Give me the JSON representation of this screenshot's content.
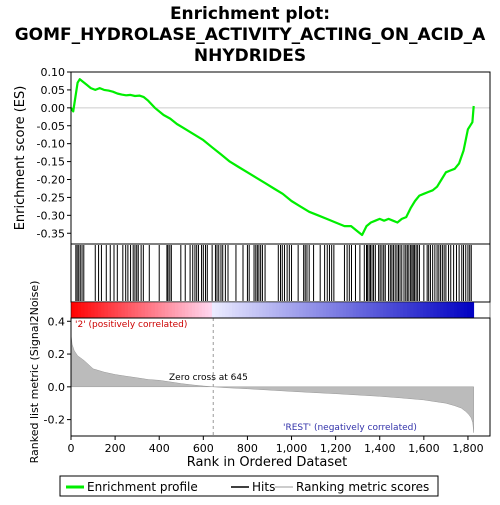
{
  "chart_data": {
    "type": "line",
    "title_lines": [
      "Enrichment plot:",
      "GOMF_HYDROLASE_ACTIVITY_ACTING_ON_ACID_A",
      "NHYDRIDES"
    ],
    "xlabel": "Rank in Ordered Dataset",
    "xlim": [
      0,
      1900
    ],
    "x_ticks": [
      0,
      200,
      400,
      600,
      800,
      1000,
      1200,
      1400,
      1600,
      1800
    ],
    "x_tick_labels": [
      "0",
      "200",
      "400",
      "600",
      "800",
      "1,000",
      "1,200",
      "1,400",
      "1,600",
      "1,800"
    ],
    "panels": [
      {
        "name": "enrichment",
        "ylabel": "Enrichment score (ES)",
        "ylim": [
          -0.38,
          0.1
        ],
        "y_ticks": [
          0.1,
          0.05,
          0.0,
          -0.05,
          -0.1,
          -0.15,
          -0.2,
          -0.25,
          -0.3,
          -0.35
        ],
        "y_tick_labels": [
          "0.10",
          "0.05",
          "0.00",
          "-0.05",
          "-0.10",
          "-0.15",
          "-0.20",
          "-0.25",
          "-0.30",
          "-0.35"
        ],
        "series": [
          {
            "name": "Enrichment profile",
            "color": "#00ee00",
            "x": [
              0,
              10,
              20,
              30,
              40,
              50,
              70,
              90,
              110,
              130,
              150,
              170,
              190,
              210,
              230,
              250,
              270,
              290,
              310,
              330,
              350,
              380,
              420,
              450,
              480,
              520,
              560,
              600,
              640,
              680,
              720,
              760,
              800,
              840,
              880,
              920,
              960,
              1000,
              1040,
              1080,
              1120,
              1160,
              1200,
              1240,
              1270,
              1300,
              1320,
              1340,
              1360,
              1380,
              1400,
              1420,
              1440,
              1460,
              1480,
              1500,
              1520,
              1540,
              1560,
              1580,
              1600,
              1620,
              1640,
              1660,
              1680,
              1700,
              1720,
              1740,
              1760,
              1780,
              1790,
              1800,
              1810,
              1820,
              1826
            ],
            "y": [
              0.0,
              -0.01,
              0.03,
              0.07,
              0.08,
              0.075,
              0.065,
              0.055,
              0.05,
              0.055,
              0.05,
              0.048,
              0.045,
              0.04,
              0.037,
              0.035,
              0.036,
              0.033,
              0.034,
              0.03,
              0.02,
              0.0,
              -0.02,
              -0.03,
              -0.045,
              -0.06,
              -0.075,
              -0.09,
              -0.11,
              -0.13,
              -0.15,
              -0.165,
              -0.18,
              -0.195,
              -0.21,
              -0.225,
              -0.24,
              -0.26,
              -0.275,
              -0.29,
              -0.3,
              -0.31,
              -0.32,
              -0.33,
              -0.33,
              -0.345,
              -0.355,
              -0.33,
              -0.32,
              -0.315,
              -0.31,
              -0.315,
              -0.31,
              -0.315,
              -0.32,
              -0.31,
              -0.305,
              -0.28,
              -0.26,
              -0.245,
              -0.24,
              -0.235,
              -0.23,
              -0.22,
              -0.2,
              -0.18,
              -0.175,
              -0.17,
              -0.155,
              -0.12,
              -0.09,
              -0.06,
              -0.05,
              -0.04,
              0.005
            ]
          }
        ]
      },
      {
        "name": "ranked_metric",
        "ylabel": "Ranked list metric (Signal2Noise)",
        "ylim": [
          -0.3,
          0.42
        ],
        "y_ticks": [
          0.4,
          0.2,
          0.0,
          -0.2
        ],
        "y_tick_labels": [
          "0.4",
          "0.2",
          "0.0",
          "-0.2"
        ],
        "series": [
          {
            "name": "Ranking metric scores",
            "color": "#bbbbbb",
            "x": [
              0,
              5,
              15,
              30,
              60,
              100,
              150,
              200,
              250,
              300,
              350,
              400,
              450,
              500,
              550,
              600,
              645,
              700,
              800,
              900,
              1000,
              1100,
              1200,
              1300,
              1400,
              1500,
              1600,
              1650,
              1700,
              1740,
              1770,
              1790,
              1805,
              1815,
              1822,
              1826
            ],
            "y": [
              0.32,
              0.26,
              0.22,
              0.19,
              0.16,
              0.11,
              0.09,
              0.075,
              0.065,
              0.055,
              0.045,
              0.04,
              0.03,
              0.02,
              0.012,
              0.005,
              0.0,
              -0.005,
              -0.012,
              -0.02,
              -0.028,
              -0.035,
              -0.042,
              -0.05,
              -0.058,
              -0.068,
              -0.08,
              -0.09,
              -0.1,
              -0.115,
              -0.13,
              -0.15,
              -0.17,
              -0.19,
              -0.22,
              -0.28
            ]
          }
        ]
      }
    ],
    "hits": [
      22,
      28,
      35,
      42,
      50,
      58,
      110,
      125,
      138,
      160,
      178,
      195,
      210,
      235,
      248,
      258,
      270,
      282,
      290,
      298,
      305,
      318,
      328,
      355,
      400,
      435,
      440,
      448,
      455,
      498,
      518,
      540,
      552,
      562,
      570,
      578,
      592,
      600,
      610,
      618,
      640,
      655,
      662,
      670,
      680,
      688,
      700,
      712,
      748,
      780,
      800,
      808,
      830,
      838,
      845,
      852,
      860,
      868,
      880,
      940,
      950,
      958,
      968,
      980,
      990,
      1000,
      1030,
      1055,
      1062,
      1070,
      1080,
      1100,
      1130,
      1150,
      1162,
      1172,
      1182,
      1192,
      1240,
      1252,
      1262,
      1272,
      1290,
      1310,
      1330,
      1340,
      1345,
      1352,
      1358,
      1365,
      1372,
      1380,
      1395,
      1402,
      1410,
      1418,
      1425,
      1440,
      1448,
      1455,
      1462,
      1470,
      1478,
      1485,
      1492,
      1500,
      1510,
      1518,
      1525,
      1532,
      1540,
      1546,
      1552,
      1558,
      1565,
      1572,
      1580,
      1600,
      1615,
      1622,
      1630,
      1640,
      1650,
      1660,
      1668,
      1676,
      1684,
      1692,
      1700,
      1712,
      1722,
      1735,
      1748,
      1760,
      1772,
      1780,
      1790,
      1800,
      1808,
      1815
    ],
    "zero_cross_label": "Zero cross at 645",
    "zero_cross": 645,
    "n_genes": 1826,
    "annotation_pos": "'2' (positively correlated)",
    "annotation_neg": "'REST' (negatively correlated)",
    "legend": {
      "placement": "bottom",
      "entries": [
        {
          "label": "Enrichment profile",
          "color": "#00ee00"
        },
        {
          "label": "Hits",
          "color": "#000000"
        },
        {
          "label": "Ranking metric scores",
          "color": "#bbbbbb"
        }
      ]
    },
    "colors": {
      "profile": "#00ee00",
      "hits": "#000000",
      "metric_fill": "#bbbbbb",
      "heat_pos": "#ff0000",
      "heat_neg": "#0000cc"
    }
  }
}
